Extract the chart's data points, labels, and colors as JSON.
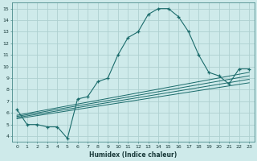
{
  "xlabel": "Humidex (Indice chaleur)",
  "bg_color": "#ceeaea",
  "grid_color": "#aed0d0",
  "line_color": "#1a6b6b",
  "xlim": [
    -0.5,
    23.5
  ],
  "ylim": [
    3.5,
    15.5
  ],
  "xticks": [
    0,
    1,
    2,
    3,
    4,
    5,
    6,
    7,
    8,
    9,
    10,
    11,
    12,
    13,
    14,
    15,
    16,
    17,
    18,
    19,
    20,
    21,
    22,
    23
  ],
  "yticks": [
    4,
    5,
    6,
    7,
    8,
    9,
    10,
    11,
    12,
    13,
    14,
    15
  ],
  "main_line": {
    "x": [
      0,
      1,
      2,
      3,
      4,
      5,
      6,
      7,
      8,
      9,
      10,
      11,
      12,
      13,
      14,
      15,
      16,
      17,
      18,
      19,
      20,
      21,
      22,
      23
    ],
    "y": [
      6.3,
      5.0,
      5.0,
      4.8,
      4.8,
      3.8,
      7.2,
      7.4,
      8.7,
      9.0,
      11.0,
      12.5,
      13.0,
      14.5,
      15.0,
      15.0,
      14.3,
      13.0,
      11.0,
      9.5,
      9.2,
      8.5,
      9.8,
      9.8
    ]
  },
  "trend_lines": [
    {
      "x": [
        0,
        23
      ],
      "y": [
        5.8,
        9.5
      ]
    },
    {
      "x": [
        0,
        23
      ],
      "y": [
        5.7,
        9.2
      ]
    },
    {
      "x": [
        0,
        23
      ],
      "y": [
        5.6,
        8.9
      ]
    },
    {
      "x": [
        0,
        23
      ],
      "y": [
        5.5,
        8.6
      ]
    }
  ]
}
